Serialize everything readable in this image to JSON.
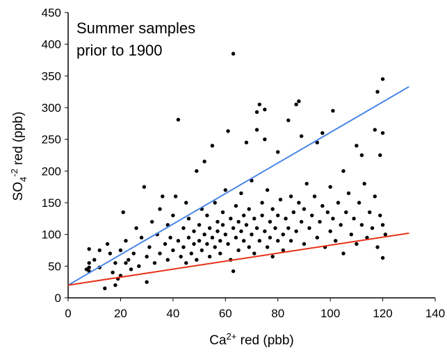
{
  "chart_data": {
    "type": "scatter",
    "annotation": [
      "Summer samples",
      "prior to 1900"
    ],
    "x_label": [
      "Ca",
      "2+",
      " red (pbb)"
    ],
    "y_label": [
      "SO",
      "4",
      "-2",
      " red (ppb)"
    ],
    "xlim": [
      0,
      140
    ],
    "xticks": [
      0,
      20,
      40,
      60,
      80,
      100,
      120,
      140
    ],
    "ylim": [
      0,
      450
    ],
    "yticks": [
      0,
      50,
      100,
      150,
      200,
      250,
      300,
      350,
      400,
      450
    ],
    "grid": false,
    "series": [
      {
        "color": "#000000",
        "x": [
          7,
          8,
          8,
          8,
          12,
          10,
          12,
          14,
          15,
          16,
          17,
          18,
          19,
          18,
          20,
          20,
          21,
          22,
          22,
          23,
          24,
          25,
          26,
          27,
          28,
          29,
          30,
          30,
          31,
          32,
          33,
          34,
          35,
          35,
          36,
          37,
          38,
          38,
          39,
          40,
          40,
          41,
          42,
          42,
          43,
          44,
          44,
          45,
          45,
          46,
          46,
          47,
          48,
          48,
          49,
          49,
          50,
          50,
          51,
          51,
          52,
          52,
          53,
          53,
          54,
          54,
          55,
          55,
          56,
          56,
          57,
          57,
          58,
          58,
          59,
          59,
          60,
          60,
          61,
          61,
          62,
          62,
          63,
          63,
          63,
          64,
          64,
          65,
          65,
          66,
          66,
          67,
          67,
          68,
          68,
          69,
          69,
          70,
          70,
          71,
          71,
          72,
          72,
          72,
          73,
          73,
          74,
          74,
          75,
          75,
          75,
          76,
          76,
          77,
          77,
          78,
          78,
          79,
          80,
          80,
          80,
          81,
          82,
          82,
          83,
          84,
          84,
          85,
          85,
          86,
          87,
          87,
          88,
          88,
          89,
          89,
          90,
          90,
          91,
          92,
          93,
          94,
          95,
          95,
          96,
          97,
          97,
          98,
          99,
          100,
          100,
          101,
          101,
          102,
          103,
          104,
          105,
          105,
          106,
          107,
          108,
          109,
          110,
          110,
          111,
          112,
          112,
          113,
          114,
          115,
          116,
          117,
          117,
          118,
          118,
          119,
          119,
          120,
          120,
          120,
          120,
          121,
          8
        ],
        "values": [
          45,
          42,
          55,
          77,
          75,
          60,
          48,
          15,
          85,
          70,
          40,
          55,
          30,
          20,
          35,
          75,
          135,
          55,
          90,
          60,
          45,
          70,
          110,
          50,
          95,
          175,
          25,
          65,
          80,
          120,
          55,
          100,
          70,
          140,
          160,
          85,
          60,
          115,
          95,
          75,
          130,
          160,
          281,
          90,
          65,
          110,
          80,
          150,
          55,
          95,
          125,
          70,
          105,
          85,
          200,
          60,
          90,
          115,
          140,
          75,
          215,
          100,
          85,
          130,
          65,
          110,
          240,
          95,
          150,
          80,
          120,
          105,
          70,
          90,
          135,
          115,
          100,
          170,
          263,
          85,
          125,
          60,
          385,
          42,
          110,
          95,
          145,
          75,
          120,
          105,
          165,
          90,
          130,
          245,
          115,
          80,
          140,
          100,
          185,
          125,
          70,
          293,
          265,
          110,
          305,
          90,
          150,
          130,
          297,
          250,
          105,
          80,
          170,
          120,
          95,
          140,
          65,
          110,
          230,
          130,
          90,
          155,
          100,
          75,
          125,
          280,
          110,
          160,
          90,
          135,
          305,
          105,
          310,
          150,
          255,
          120,
          85,
          140,
          180,
          110,
          130,
          160,
          245,
          95,
          120,
          260,
          145,
          80,
          135,
          105,
          175,
          295,
          125,
          90,
          150,
          115,
          200,
          70,
          135,
          165,
          100,
          125,
          240,
          85,
          150,
          225,
          115,
          180,
          95,
          135,
          110,
          265,
          160,
          325,
          80,
          225,
          130,
          345,
          260,
          63,
          115,
          100,
          48
        ]
      }
    ],
    "reference_lines": [
      {
        "color": "#4a86e8",
        "x": [
          0,
          130
        ],
        "values": [
          20,
          333
        ]
      },
      {
        "color": "#e8301a",
        "x": [
          0,
          130
        ],
        "values": [
          20,
          102
        ]
      }
    ]
  }
}
